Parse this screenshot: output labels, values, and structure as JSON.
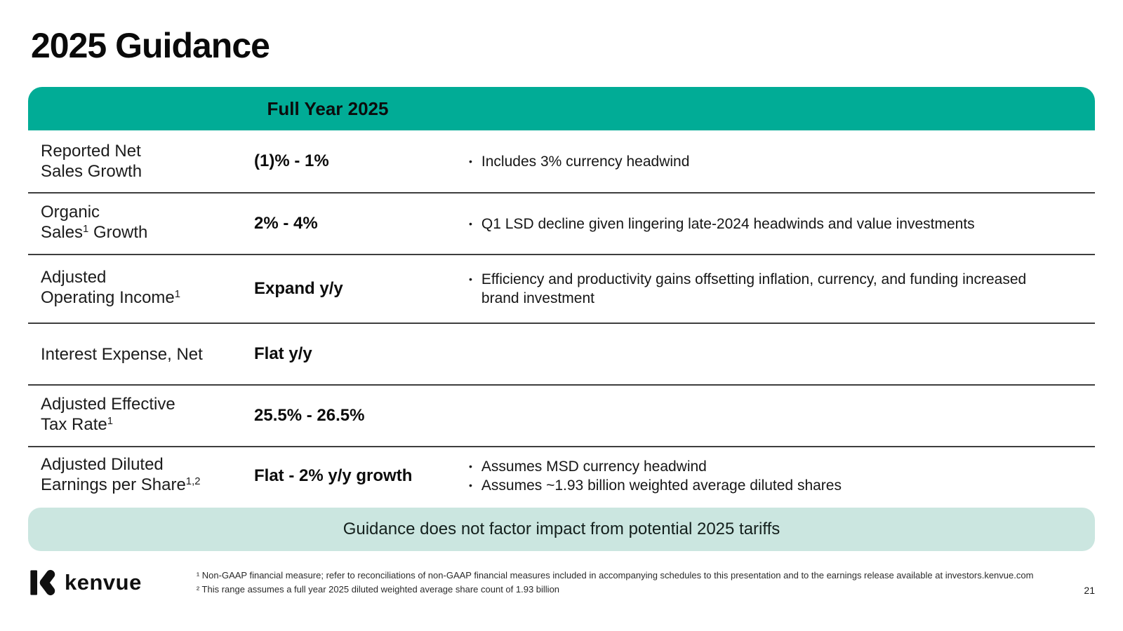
{
  "page": {
    "title": "2025 Guidance",
    "page_number": "21"
  },
  "table": {
    "header": "Full Year 2025",
    "bullet_char": "•",
    "rows": [
      {
        "label": [
          [
            {
              "t": "Reported Net"
            }
          ],
          [
            {
              "t": "Sales Growth"
            }
          ]
        ],
        "value": "(1)% - 1%",
        "bullets": [
          "Includes 3% currency headwind"
        ]
      },
      {
        "label": [
          [
            {
              "t": "Organic"
            }
          ],
          [
            {
              "t": "Sales"
            },
            {
              "t": "1",
              "sup": true
            },
            {
              "t": " Growth"
            }
          ]
        ],
        "value": "2% - 4%",
        "bullets": [
          "Q1 LSD decline given lingering late-2024 headwinds and value investments"
        ]
      },
      {
        "label": [
          [
            {
              "t": "Adjusted"
            }
          ],
          [
            {
              "t": "Operating Income"
            },
            {
              "t": "1",
              "sup": true
            }
          ]
        ],
        "value": "Expand y/y",
        "bullets": [
          "Efficiency and productivity gains offsetting inflation, currency, and funding increased brand investment"
        ]
      },
      {
        "label": [
          [
            {
              "t": "Interest Expense, Net"
            }
          ]
        ],
        "value": "Flat y/y",
        "bullets": []
      },
      {
        "label": [
          [
            {
              "t": "Adjusted Effective"
            }
          ],
          [
            {
              "t": "Tax Rate"
            },
            {
              "t": "1",
              "sup": true
            }
          ]
        ],
        "value": "25.5% - 26.5%",
        "bullets": []
      },
      {
        "label": [
          [
            {
              "t": "Adjusted Diluted"
            }
          ],
          [
            {
              "t": "Earnings per Share"
            },
            {
              "t": "1,2",
              "sup": true
            }
          ]
        ],
        "value": "Flat - 2% y/y growth",
        "bullets": [
          "Assumes MSD currency headwind",
          "Assumes ~1.93 billion weighted average diluted shares"
        ]
      }
    ]
  },
  "banner": {
    "text": "Guidance does not factor impact from potential 2025 tariffs"
  },
  "footer": {
    "brand": "kenvue",
    "footnotes": [
      "¹ Non-GAAP financial measure; refer to reconciliations of non-GAAP financial measures included in accompanying schedules to this presentation and to the earnings release available at investors.kenvue.com",
      "² This range assumes a full year 2025 diluted weighted average share count of 1.93 billion"
    ]
  },
  "colors": {
    "header_teal": "#01AC96",
    "banner_mint": "#CBE6E0",
    "text": "#161616",
    "divider": "#3E3E3E"
  }
}
